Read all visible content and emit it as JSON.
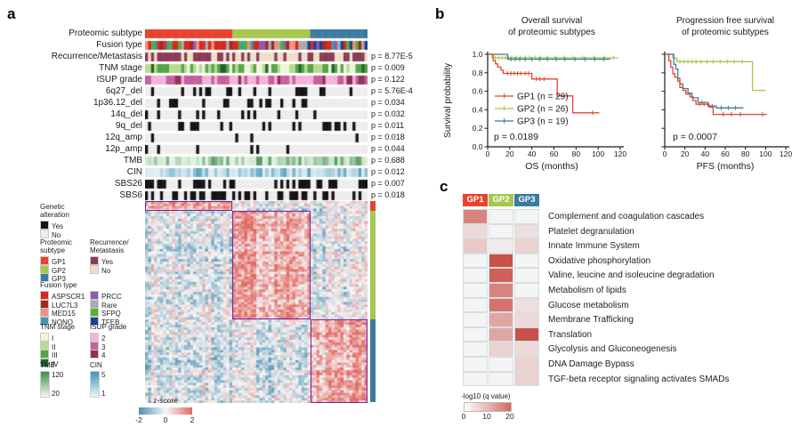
{
  "panels": {
    "a": "a",
    "b": "b",
    "c": "c"
  },
  "colors": {
    "heat_low": "#4f8fae",
    "heat_mid": "#f7f7f7",
    "heat_high": "#e26a65",
    "box_stroke": "#7426a5",
    "bin_on": "#141414",
    "bin_off": "#ededed"
  },
  "panel_a": {
    "tracks": [
      {
        "label": "Proteomic subtype",
        "p": "",
        "type": "subtype"
      },
      {
        "label": "Fusion type",
        "p": "",
        "type": "cat",
        "palette": [
          "#d6281e",
          "#9e2b20",
          "#f2907e",
          "#3d9aae",
          "#8e5bb4",
          "#ababab",
          "#4db527",
          "#1f3e96"
        ],
        "weights": [
          [
            0.5,
            0.05,
            0.07,
            0.05,
            0.07,
            0.1,
            0.08,
            0.08
          ],
          [
            0.18,
            0.1,
            0.12,
            0.1,
            0.12,
            0.13,
            0.13,
            0.12
          ],
          [
            0.12,
            0.08,
            0.08,
            0.14,
            0.1,
            0.14,
            0.1,
            0.24
          ]
        ]
      },
      {
        "label": "Recurrence/Metastasis",
        "p": "p = 8.77E-5",
        "type": "cat",
        "palette": [
          "#8e3a55",
          "#ece0c8"
        ],
        "weights": [
          [
            0.75,
            0.25
          ],
          [
            0.28,
            0.72
          ],
          [
            0.5,
            0.5
          ]
        ]
      },
      {
        "label": "TNM stage",
        "p": "p = 0.009",
        "type": "cat",
        "palette": [
          "#edf5dd",
          "#b9dc8e",
          "#57a546",
          "#1e652b"
        ],
        "weights": [
          [
            0.2,
            0.2,
            0.35,
            0.25
          ],
          [
            0.5,
            0.25,
            0.2,
            0.05
          ],
          [
            0.35,
            0.25,
            0.3,
            0.1
          ]
        ]
      },
      {
        "label": "ISUP grade",
        "p": "p = 0.122",
        "type": "cat",
        "palette": [
          "#f3b5d5",
          "#c75f9f",
          "#8c3156"
        ],
        "weights": [
          [
            0.35,
            0.4,
            0.25
          ],
          [
            0.55,
            0.35,
            0.1
          ],
          [
            0.4,
            0.45,
            0.15
          ]
        ]
      },
      {
        "label": "6q27_del",
        "p": "p = 5.76E-4",
        "type": "bin",
        "frac": [
          0.45,
          0.33,
          0.12
        ]
      },
      {
        "label": "1p36.12_del",
        "p": "p = 0.034",
        "type": "bin",
        "frac": [
          0.2,
          0.3,
          0.03
        ]
      },
      {
        "label": "14q_del",
        "p": "p = 0.032",
        "type": "bin",
        "frac": [
          0.22,
          0.25,
          0.05
        ]
      },
      {
        "label": "9q_del",
        "p": "p = 0.011",
        "type": "bin",
        "frac": [
          0.3,
          0.22,
          0.12
        ]
      },
      {
        "label": "12q_amp",
        "p": "p = 0.018",
        "type": "bin",
        "frac": [
          0.12,
          0.16,
          0.03
        ]
      },
      {
        "label": "12p_amp",
        "p": "p = 0.044",
        "type": "bin",
        "frac": [
          0.12,
          0.14,
          0.03
        ]
      },
      {
        "label": "TMB",
        "p": "p = 0.688",
        "type": "grad",
        "low": "#f3f9f1",
        "high": "#3e8e4b"
      },
      {
        "label": "CIN",
        "p": "p = 0.012",
        "type": "grad",
        "low": "#eef6f5",
        "high": "#3d93bb"
      },
      {
        "label": "SBS26",
        "p": "p = 0.007",
        "type": "bin",
        "frac": [
          0.6,
          0.35,
          0.5
        ]
      },
      {
        "label": "SBS6",
        "p": "p = 0.018",
        "type": "bin",
        "frac": [
          0.5,
          0.48,
          0.25
        ]
      }
    ],
    "legend": {
      "genetic": {
        "title_lines": [
          "Genetic",
          "alteration"
        ],
        "items": [
          {
            "label": "Yes",
            "color": "#141414"
          },
          {
            "label": "No",
            "color": "#ededed"
          }
        ]
      },
      "proteomic": {
        "title_lines": [
          "Proteomic",
          "subtype"
        ],
        "items": [
          {
            "label": "GP1",
            "color": "#e8432d"
          },
          {
            "label": "GP2",
            "color": "#a6c84e"
          },
          {
            "label": "GP3",
            "color": "#3c7ba0"
          }
        ]
      },
      "recurrence": {
        "title_lines": [
          "Recurrence/",
          "Metastasis"
        ],
        "items": [
          {
            "label": "Yes",
            "color": "#8e3a55"
          },
          {
            "label": "No",
            "color": "#ece0c8"
          }
        ]
      },
      "fusion": {
        "title_lines": [
          "Fusion type"
        ],
        "items": [
          {
            "label": "ASPSCR1",
            "color": "#d6281e"
          },
          {
            "label": "LUC7L3",
            "color": "#9e2b20"
          },
          {
            "label": "MED15",
            "color": "#f2907e"
          },
          {
            "label": "NONO",
            "color": "#3d9aae"
          }
        ],
        "items2": [
          {
            "label": "PRCC",
            "color": "#8e5bb4"
          },
          {
            "label": "Rare",
            "color": "#ababab"
          },
          {
            "label": "SFPQ",
            "color": "#4db527"
          },
          {
            "label": "TFEB",
            "color": "#1f3e96"
          }
        ]
      },
      "tnm": {
        "title_lines": [
          "TNM stage"
        ],
        "items": [
          {
            "label": "I",
            "color": "#edf5dd"
          },
          {
            "label": "II",
            "color": "#b9dc8e"
          },
          {
            "label": "III",
            "color": "#57a546"
          },
          {
            "label": "IV",
            "color": "#1e652b"
          }
        ]
      },
      "isup": {
        "title_lines": [
          "ISUP grade"
        ],
        "items": [
          {
            "label": "2",
            "color": "#f3b5d5"
          },
          {
            "label": "3",
            "color": "#c75f9f"
          },
          {
            "label": "4",
            "color": "#8c3156"
          }
        ]
      },
      "tmb": {
        "title_lines": [
          "TMB"
        ],
        "gradient": {
          "top_label": "120",
          "bottom_label": "20",
          "top_color": "#3e8e4b",
          "bottom_color": "#f3f9f1"
        }
      },
      "cin": {
        "title_lines": [
          "CIN"
        ],
        "gradient": {
          "top_label": "5",
          "bottom_label": "1",
          "top_color": "#3d93bb",
          "bottom_color": "#eef6f5"
        }
      }
    }
  },
  "chart_data": [
    {
      "type": "line",
      "subtype": "kaplan-meier",
      "title_lines": [
        "Overall survival",
        "of proteomic subtypes"
      ],
      "xlabel": "OS (months)",
      "ylabel": "Survival probability",
      "xlim": [
        0,
        120
      ],
      "ylim": [
        0,
        1
      ],
      "xticks": [
        0,
        20,
        40,
        60,
        80,
        100,
        120
      ],
      "yticks": [
        "0.0",
        "0.2",
        "0.4",
        "0.6",
        "0.8",
        "1.0"
      ],
      "p_label": "p = 0.0189",
      "legend": [
        "GP1 (n = 29)",
        "GP2 (n = 26)",
        "GP3 (n = 19)"
      ],
      "series": [
        {
          "name": "GP2",
          "color": "#a6c84e",
          "steps": [
            [
              0,
              1
            ],
            [
              4,
              1
            ],
            [
              4,
              0.962
            ],
            [
              118,
              0.962
            ]
          ],
          "censors": [
            7,
            10,
            13,
            16,
            19,
            22,
            26,
            30,
            34,
            38,
            43,
            48,
            54,
            61,
            69,
            77,
            86,
            96,
            106,
            114
          ]
        },
        {
          "name": "GP3",
          "color": "#3c7ba0",
          "steps": [
            [
              0,
              1
            ],
            [
              18,
              1
            ],
            [
              18,
              0.947
            ],
            [
              111,
              0.947
            ]
          ],
          "censors": [
            21,
            25,
            29,
            34,
            40,
            47,
            54,
            62,
            70,
            79,
            88,
            97,
            105
          ]
        },
        {
          "name": "GP1",
          "color": "#e8432d",
          "steps": [
            [
              0,
              1
            ],
            [
              5,
              1
            ],
            [
              5,
              0.931
            ],
            [
              7,
              0.931
            ],
            [
              7,
              0.897
            ],
            [
              9,
              0.897
            ],
            [
              9,
              0.862
            ],
            [
              12,
              0.862
            ],
            [
              12,
              0.828
            ],
            [
              14,
              0.828
            ],
            [
              14,
              0.793
            ],
            [
              40,
              0.793
            ],
            [
              40,
              0.733
            ],
            [
              63,
              0.733
            ],
            [
              63,
              0.55
            ],
            [
              77,
              0.55
            ],
            [
              77,
              0.367
            ],
            [
              101,
              0.367
            ]
          ],
          "censors": [
            18,
            21,
            24,
            27,
            30,
            34,
            37,
            44,
            47,
            51,
            95
          ]
        }
      ]
    },
    {
      "type": "line",
      "subtype": "kaplan-meier",
      "title_lines": [
        "Progression free survival",
        "of proteomic subtypes"
      ],
      "xlabel": "PFS (months)",
      "ylabel": "",
      "xlim": [
        0,
        120
      ],
      "ylim": [
        0,
        1
      ],
      "xticks": [
        0,
        20,
        40,
        60,
        80,
        100,
        120
      ],
      "yticks": [
        "0.0",
        "0.2",
        "0.4",
        "0.6",
        "0.8",
        "1.0"
      ],
      "p_label": "p = 0.0007",
      "legend": [],
      "series": [
        {
          "name": "GP2",
          "color": "#a6c84e",
          "steps": [
            [
              0,
              1
            ],
            [
              8,
              1
            ],
            [
              8,
              0.96
            ],
            [
              12,
              0.96
            ],
            [
              12,
              0.92
            ],
            [
              87,
              0.92
            ],
            [
              87,
              0.61
            ],
            [
              100,
              0.61
            ]
          ],
          "censors": [
            15,
            19,
            23,
            27,
            31,
            36,
            42,
            48,
            55,
            62,
            69,
            77
          ]
        },
        {
          "name": "GP3",
          "color": "#3c7ba0",
          "steps": [
            [
              0,
              1
            ],
            [
              9,
              1
            ],
            [
              9,
              0.89
            ],
            [
              11,
              0.89
            ],
            [
              11,
              0.84
            ],
            [
              13,
              0.84
            ],
            [
              13,
              0.74
            ],
            [
              15,
              0.74
            ],
            [
              15,
              0.68
            ],
            [
              18,
              0.68
            ],
            [
              18,
              0.63
            ],
            [
              23,
              0.63
            ],
            [
              23,
              0.58
            ],
            [
              27,
              0.58
            ],
            [
              27,
              0.53
            ],
            [
              33,
              0.53
            ],
            [
              33,
              0.48
            ],
            [
              43,
              0.48
            ],
            [
              43,
              0.44
            ],
            [
              51,
              0.44
            ],
            [
              51,
              0.42
            ],
            [
              78,
              0.42
            ]
          ],
          "censors": [
            37,
            47,
            56,
            63,
            70
          ]
        },
        {
          "name": "GP1",
          "color": "#e8432d",
          "steps": [
            [
              0,
              1
            ],
            [
              4,
              1
            ],
            [
              4,
              0.93
            ],
            [
              6,
              0.93
            ],
            [
              6,
              0.86
            ],
            [
              8,
              0.86
            ],
            [
              8,
              0.79
            ],
            [
              10,
              0.79
            ],
            [
              10,
              0.75
            ],
            [
              13,
              0.75
            ],
            [
              13,
              0.71
            ],
            [
              15,
              0.71
            ],
            [
              15,
              0.64
            ],
            [
              18,
              0.64
            ],
            [
              18,
              0.61
            ],
            [
              21,
              0.61
            ],
            [
              21,
              0.57
            ],
            [
              25,
              0.57
            ],
            [
              25,
              0.54
            ],
            [
              28,
              0.54
            ],
            [
              28,
              0.5
            ],
            [
              31,
              0.5
            ],
            [
              31,
              0.46
            ],
            [
              44,
              0.46
            ],
            [
              44,
              0.43
            ],
            [
              48,
              0.43
            ],
            [
              48,
              0.35
            ],
            [
              101,
              0.35
            ]
          ],
          "censors": [
            35,
            39,
            58,
            66,
            75,
            97
          ]
        }
      ]
    },
    {
      "type": "heatmap",
      "name": "pathway-enrichment",
      "columns": [
        {
          "label": "GP1",
          "color": "#e8432d"
        },
        {
          "label": "GP2",
          "color": "#a6c84e"
        },
        {
          "label": "GP3",
          "color": "#3c7ba0"
        }
      ],
      "scale": {
        "label": "-log10 (q value)",
        "min": 0,
        "max": 20,
        "ticks": [
          "0",
          "10",
          "20"
        ],
        "low_color": "#ffffff",
        "high_color": "#d4695e",
        "cell_base": "#f2f4f5",
        "cell_high": "#c8483f"
      },
      "rows": [
        {
          "pathway": "Complement and coagulation cascades",
          "values": [
            13,
            0,
            0
          ]
        },
        {
          "pathway": "Platelet degranulation",
          "values": [
            3,
            0,
            2.5
          ]
        },
        {
          "pathway": "Innate Immune System",
          "values": [
            5,
            1,
            4
          ]
        },
        {
          "pathway": "Oxidative phosphorylation",
          "values": [
            0,
            19,
            0
          ]
        },
        {
          "pathway": "Valine, leucine and isoleucine degradation",
          "values": [
            0,
            17,
            0
          ]
        },
        {
          "pathway": "Metabolism of lipids",
          "values": [
            0,
            13,
            0
          ]
        },
        {
          "pathway": "Glucose metabolism",
          "values": [
            0,
            15,
            2.5
          ]
        },
        {
          "pathway": "Membrane Trafficking",
          "values": [
            0,
            9,
            3
          ]
        },
        {
          "pathway": "Translation",
          "values": [
            0,
            9,
            19
          ]
        },
        {
          "pathway": "Glycolysis and Gluconeogenesis",
          "values": [
            0,
            4,
            3
          ]
        },
        {
          "pathway": "DNA Damage Bypass",
          "values": [
            0,
            0,
            4
          ]
        },
        {
          "pathway": "TGF-beta receptor signaling activates SMADs",
          "values": [
            0,
            0,
            4
          ]
        }
      ]
    },
    {
      "type": "heatmap",
      "name": "expression-zscore-heatmap",
      "colorbar": {
        "label": "z-score",
        "tick_neg": "-2",
        "tick_mid": "0",
        "tick_pos": "2",
        "low_color": "#4f8fae",
        "mid_color": "#f7f7f7",
        "high_color": "#e26a65"
      },
      "sample_groups": [
        {
          "name": "GP1",
          "n": 29,
          "color": "#e8432d"
        },
        {
          "name": "GP2",
          "n": 26,
          "color": "#a6c84e"
        },
        {
          "name": "GP3",
          "n": 19,
          "color": "#3c7ba0"
        }
      ],
      "gene_modules": [
        {
          "name": "GP1",
          "n_rows": 4,
          "color": "#e8432d"
        },
        {
          "name": "GP2",
          "n_rows": 43,
          "color": "#a6c84e"
        },
        {
          "name": "GP3",
          "n_rows": 33,
          "color": "#3c7ba0"
        }
      ]
    }
  ]
}
